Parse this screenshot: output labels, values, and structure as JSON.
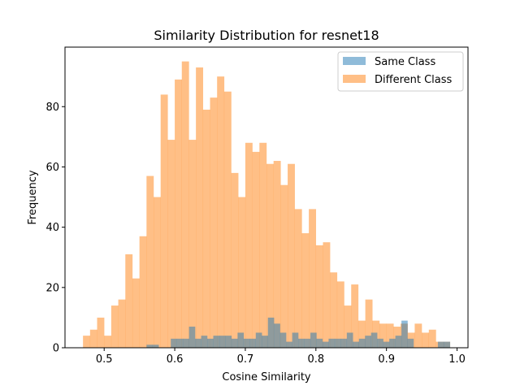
{
  "chart_data": {
    "type": "histogram",
    "title": "Similarity Distribution for resnet18",
    "xlabel": "Cosine Similarity",
    "ylabel": "Frequency",
    "xlim": [
      0.4445,
      1.0155
    ],
    "ylim": [
      0,
      99.75
    ],
    "xticks": [
      0.5,
      0.6,
      0.7,
      0.8,
      0.9,
      1.0
    ],
    "xtick_labels": [
      "0.5",
      "0.6",
      "0.7",
      "0.8",
      "0.9",
      "1.0"
    ],
    "yticks": [
      0,
      20,
      40,
      60,
      80
    ],
    "ytick_labels": [
      "0",
      "20",
      "40",
      "60",
      "80"
    ],
    "legend_position": "top-right",
    "series": [
      {
        "name": "Different Class",
        "color": "#ff7f0e",
        "opacity": 0.5,
        "bin_start": 0.47,
        "bin_width": 0.01,
        "counts": [
          4,
          6,
          10,
          4,
          14,
          16,
          31,
          23,
          37,
          57,
          50,
          84,
          69,
          89,
          95,
          69,
          93,
          79,
          83,
          90,
          85,
          58,
          50,
          68,
          65,
          68,
          61,
          62,
          54,
          61,
          46,
          38,
          46,
          34,
          35,
          25,
          22,
          14,
          21,
          9,
          16,
          9,
          8,
          8,
          7,
          8,
          5,
          8,
          5,
          6,
          2,
          2
        ]
      },
      {
        "name": "Same Class",
        "color": "#1f77b4",
        "opacity": 0.5,
        "bin_start": 0.56,
        "bin_width": 0.0086,
        "counts": [
          1,
          1,
          0,
          0,
          3,
          3,
          3,
          7,
          3,
          4,
          3,
          4,
          4,
          4,
          3,
          5,
          3,
          3,
          5,
          4,
          10,
          8,
          5,
          2,
          5,
          3,
          3,
          5,
          3,
          2,
          3,
          3,
          3,
          5,
          2,
          3,
          4,
          5,
          3,
          2,
          3,
          4,
          9,
          3,
          0,
          0,
          0,
          0,
          2,
          2
        ]
      }
    ]
  }
}
